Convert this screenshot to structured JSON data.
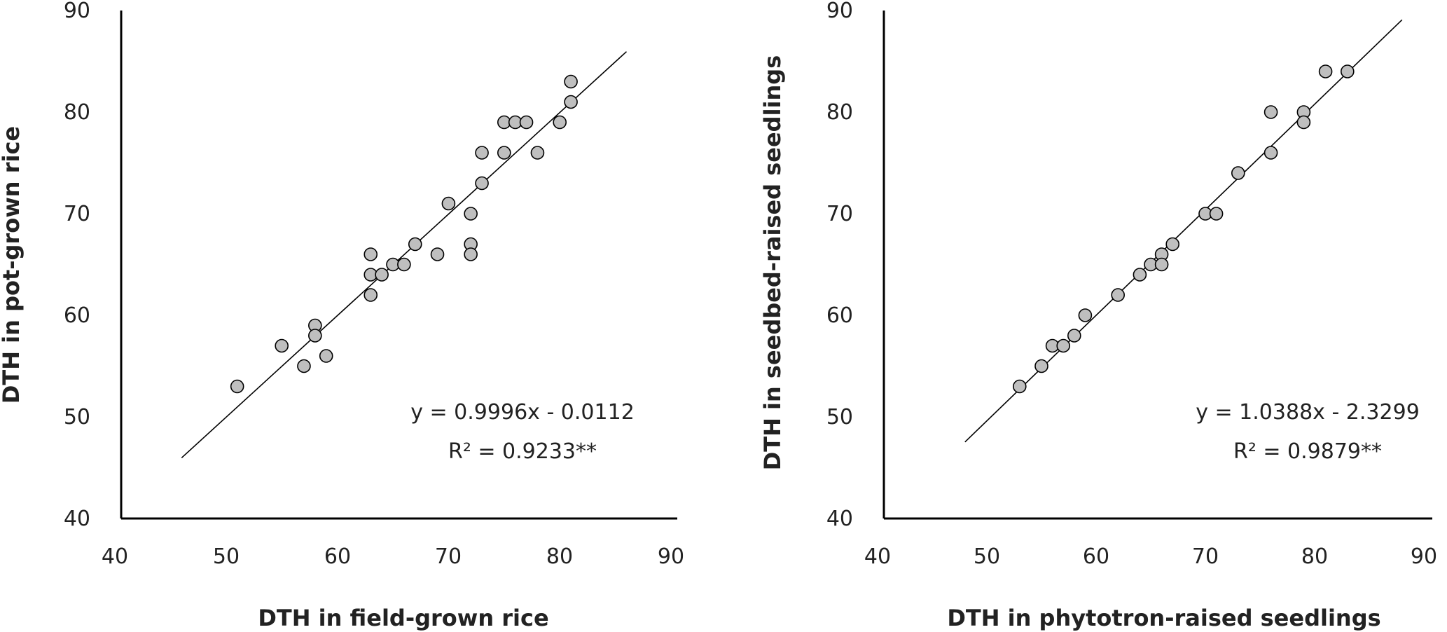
{
  "chart_data": [
    {
      "type": "scatter",
      "xlabel": "DTH in field-grown rice",
      "ylabel": "DTH in pot-grown rice",
      "xlim": [
        40,
        90
      ],
      "ylim": [
        40,
        90
      ],
      "xticks": [
        40,
        50,
        60,
        70,
        80,
        90
      ],
      "yticks": [
        40,
        50,
        60,
        70,
        80,
        90
      ],
      "grid": false,
      "legend": "none",
      "marker_fill": "#bfbfbf",
      "marker_edge": "#000000",
      "points": [
        [
          51,
          53
        ],
        [
          55,
          57
        ],
        [
          57,
          55
        ],
        [
          58,
          59
        ],
        [
          58,
          58
        ],
        [
          59,
          56
        ],
        [
          63,
          66
        ],
        [
          63,
          64
        ],
        [
          63,
          62
        ],
        [
          64,
          64
        ],
        [
          65,
          65
        ],
        [
          66,
          65
        ],
        [
          67,
          67
        ],
        [
          69,
          66
        ],
        [
          70,
          71
        ],
        [
          72,
          70
        ],
        [
          72,
          67
        ],
        [
          72,
          66
        ],
        [
          73,
          76
        ],
        [
          73,
          73
        ],
        [
          75,
          79
        ],
        [
          75,
          76
        ],
        [
          76,
          79
        ],
        [
          77,
          79
        ],
        [
          78,
          76
        ],
        [
          80,
          79
        ],
        [
          81,
          83
        ],
        [
          81,
          81
        ]
      ],
      "trendline": {
        "slope": 0.9996,
        "intercept": -0.0112,
        "x_range": [
          46,
          86
        ]
      },
      "equation": "y = 0.9996x - 0.0112",
      "r2": "R² = 0.9233**"
    },
    {
      "type": "scatter",
      "xlabel": "DTH in phytotron-raised seedlings",
      "ylabel": "DTH in seedbed-raised seedlings",
      "xlim": [
        40,
        90
      ],
      "ylim": [
        40,
        90
      ],
      "xticks": [
        40,
        50,
        60,
        70,
        80,
        90
      ],
      "yticks": [
        40,
        50,
        60,
        70,
        80,
        90
      ],
      "grid": false,
      "legend": "none",
      "marker_fill": "#bfbfbf",
      "marker_edge": "#000000",
      "points": [
        [
          53,
          53
        ],
        [
          55,
          55
        ],
        [
          56,
          57
        ],
        [
          57,
          57
        ],
        [
          58,
          58
        ],
        [
          59,
          60
        ],
        [
          62,
          62
        ],
        [
          64,
          64
        ],
        [
          65,
          65
        ],
        [
          66,
          66
        ],
        [
          66,
          65
        ],
        [
          67,
          67
        ],
        [
          70,
          70
        ],
        [
          71,
          70
        ],
        [
          73,
          74
        ],
        [
          76,
          80
        ],
        [
          76,
          76
        ],
        [
          79,
          80
        ],
        [
          79,
          79
        ],
        [
          81,
          84
        ],
        [
          83,
          84
        ]
      ],
      "trendline": {
        "slope": 1.0388,
        "intercept": -2.3299,
        "x_range": [
          48,
          88
        ]
      },
      "equation": "y = 1.0388x - 2.3299",
      "r2": "R² = 0.9879**"
    }
  ]
}
